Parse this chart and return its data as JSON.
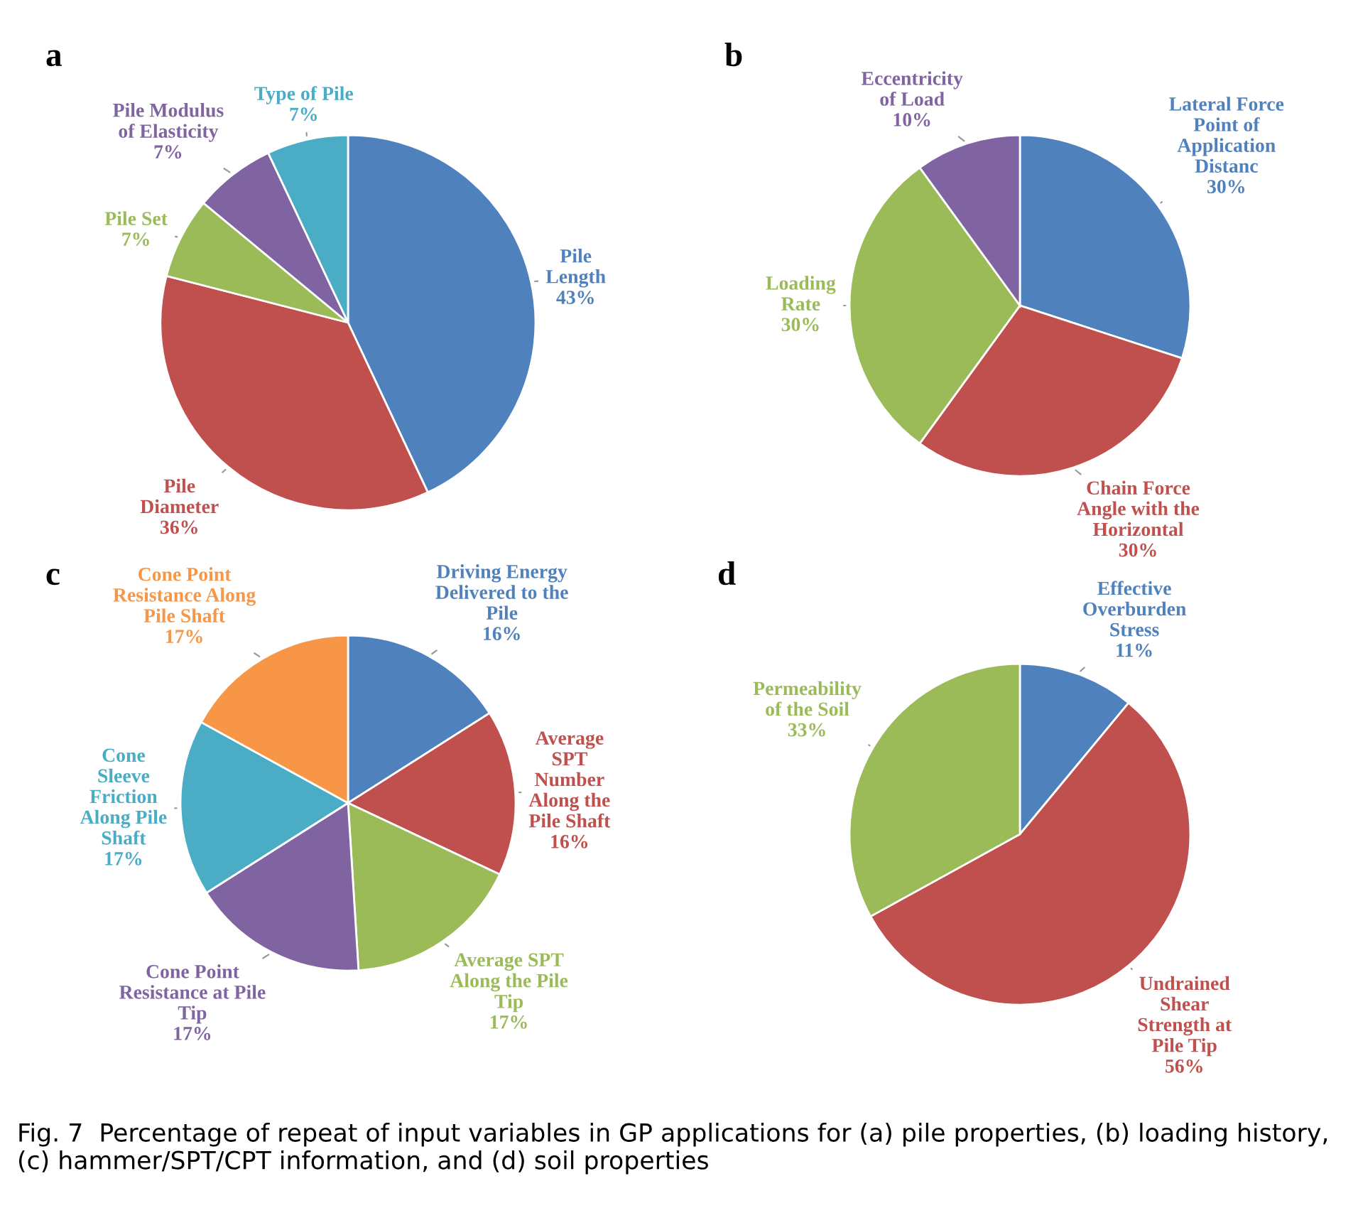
{
  "chart_data": [
    {
      "type": "pie",
      "title": "a",
      "categories": [
        "Pile\nLength",
        "Pile\nDiameter",
        "Pile Set",
        "Pile Modulus\nof Elasticity",
        "Type of Pile"
      ],
      "values": [
        43,
        36,
        7,
        7,
        7
      ],
      "value_labels": [
        "43%",
        "36%",
        "7%",
        "7%",
        "7%"
      ],
      "colors": [
        "#4f81bd",
        "#c0504d",
        "#9bbb59",
        "#8064a2",
        "#4bacc6"
      ]
    },
    {
      "type": "pie",
      "title": "b",
      "categories": [
        "Lateral Force\nPoint of\nApplication\nDistanc",
        "Chain Force\nAngle with the\nHorizontal",
        "Loading\nRate",
        "Eccentricity\nof Load"
      ],
      "values": [
        30,
        30,
        30,
        10
      ],
      "value_labels": [
        "30%",
        "30%",
        "30%",
        "10%"
      ],
      "colors": [
        "#4f81bd",
        "#c0504d",
        "#9bbb59",
        "#8064a2"
      ]
    },
    {
      "type": "pie",
      "title": "c",
      "categories": [
        "Driving Energy\nDelivered to the\nPile",
        "Average\nSPT\nNumber\nAlong the\nPile Shaft",
        "Average SPT\nAlong the Pile\nTip",
        "Cone Point\nResistance at Pile\nTip",
        "Cone\nSleeve\nFriction\nAlong Pile\nShaft",
        "Cone Point\nResistance Along\nPile Shaft"
      ],
      "values": [
        16,
        16,
        17,
        17,
        17,
        17
      ],
      "value_labels": [
        "16%",
        "16%",
        "17%",
        "17%",
        "17%",
        "17%"
      ],
      "colors": [
        "#4f81bd",
        "#c0504d",
        "#9bbb59",
        "#8064a2",
        "#4bacc6",
        "#f79646"
      ]
    },
    {
      "type": "pie",
      "title": "d",
      "categories": [
        "Effective\nOverburden\nStress",
        "Undrained\nShear\nStrength at\nPile Tip",
        "Permeability\nof the Soil"
      ],
      "values": [
        11,
        56,
        33
      ],
      "value_labels": [
        "11%",
        "56%",
        "33%"
      ],
      "colors": [
        "#4f81bd",
        "#c0504d",
        "#9bbb59"
      ],
      "annotations": [
        "Fig. 7  Percentage of repeat of input variables in GP applications for (a) pile properties, (b) loading history, (c) hammer/SPT/CPT information, and (d) soil properties"
      ]
    }
  ]
}
